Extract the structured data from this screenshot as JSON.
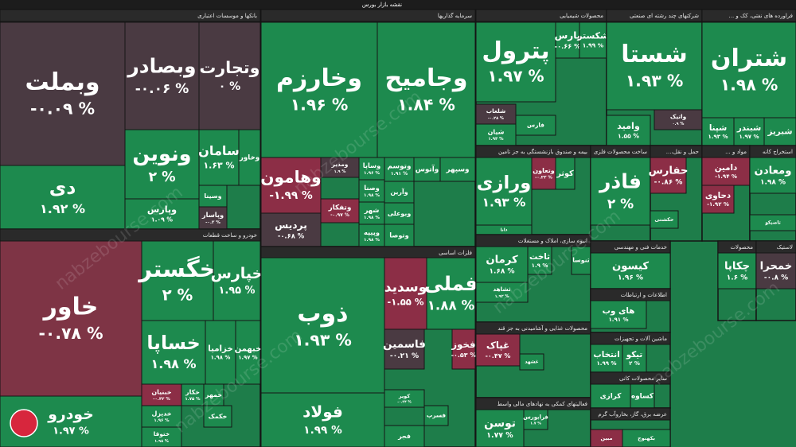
{
  "title": "نقشه بازار بورس",
  "watermark": "nabzebourse.com",
  "sectors": [
    {
      "name": "بانکها و موسسات اعتباری",
      "tiles": [
        {
          "symbol": "وبملت",
          "change": "-۰.۰۹ %",
          "color": "#4a3a42"
        },
        {
          "symbol": "دی",
          "change": "۱.۹۲ %",
          "color": "#1d8a4e"
        },
        {
          "symbol": "وبصادر",
          "change": "-۰.۰۶ %",
          "color": "#4a3a42"
        },
        {
          "symbol": "وتجارت",
          "change": "۰ %",
          "color": "#4a3a42"
        },
        {
          "symbol": "ونوین",
          "change": "۲ %",
          "color": "#1d8a4e"
        },
        {
          "symbol": "وپارس",
          "change": "۱.۰۹ %",
          "color": "#1d8a4e"
        },
        {
          "symbol": "سامان",
          "change": "۱.۶۳ %",
          "color": "#1d8a4e"
        },
        {
          "symbol": "وخاور",
          "color": "#1d8a4e"
        },
        {
          "symbol": "وسینا",
          "color": "#1d8a4e"
        },
        {
          "symbol": "وپاسار",
          "change": "-۰.۲ %",
          "color": "#4a3a42"
        }
      ]
    },
    {
      "name": "خودرو و ساخت قطعات",
      "tiles": [
        {
          "symbol": "خاور",
          "change": "-۰.۷۸ %",
          "color": "#7e3445"
        },
        {
          "symbol": "خودرو",
          "change": "۱.۹۷ %",
          "color": "#1d8a4e"
        },
        {
          "symbol": "خگستر",
          "change": "۲ %",
          "color": "#1d8a4e"
        },
        {
          "symbol": "خپارس",
          "change": "۱.۹۵ %",
          "color": "#1d8a4e"
        },
        {
          "symbol": "خساپا",
          "change": "۱.۹۸ %",
          "color": "#1d8a4e"
        },
        {
          "symbol": "خزامیا",
          "change": "۱.۹۸ %",
          "color": "#1d8a4e"
        },
        {
          "symbol": "خبهمن",
          "change": "۱.۹۷ %",
          "color": "#1d8a4e"
        },
        {
          "symbol": "خبنیان",
          "change": "-۰.۴۲ %",
          "color": "#8c2e46"
        },
        {
          "symbol": "خکار",
          "change": "۱.۷۵ %",
          "color": "#1d8a4e"
        },
        {
          "symbol": "خمهر",
          "color": "#1d8a4e"
        },
        {
          "symbol": "خدیزل",
          "change": "۱.۹۶ %",
          "color": "#1d8a4e"
        },
        {
          "symbol": "ختوقا",
          "change": "۱.۹۸ %",
          "color": "#1d8a4e"
        },
        {
          "symbol": "خکمک",
          "color": "#1d8a4e"
        }
      ]
    },
    {
      "name": "سرمایه گذاریها",
      "tiles": [
        {
          "symbol": "وخارزم",
          "change": "۱.۹۶ %",
          "color": "#1d8a4e"
        },
        {
          "symbol": "وجامیح",
          "change": "۱.۸۴ %",
          "color": "#1d8a4e"
        },
        {
          "symbol": "وهامون",
          "change": "-۱.۹۹ %",
          "color": "#8c2e46"
        },
        {
          "symbol": "ومدیر",
          "change": "۱.۹ %",
          "color": "#4a3a42"
        },
        {
          "symbol": "وتفکار",
          "change": "-۰.۹۷ %",
          "color": "#8c2e46"
        },
        {
          "symbol": "وساپا",
          "change": "۱.۹۶ %",
          "color": "#1d8a4e"
        },
        {
          "symbol": "وتوسم",
          "change": "۱.۹۱ %",
          "color": "#1d8a4e"
        },
        {
          "symbol": "وآتوس",
          "color": "#1d8a4e"
        },
        {
          "symbol": "وسپهر",
          "color": "#1d8a4e"
        },
        {
          "symbol": "پردیس",
          "change": "-۰.۶۸ %",
          "color": "#4a3a42"
        },
        {
          "symbol": "وصنا",
          "change": "۱.۹۸ %",
          "color": "#1d8a4e"
        },
        {
          "symbol": "شهر",
          "change": "۱.۹۸ %",
          "color": "#1d8a4e"
        },
        {
          "symbol": "وپیپه",
          "change": "۱.۹۸ %",
          "color": "#1d8a4e"
        },
        {
          "symbol": "وآرین",
          "color": "#1d8a4e"
        },
        {
          "symbol": "وبوعلی",
          "color": "#1d8a4e"
        },
        {
          "symbol": "وتوصا",
          "color": "#1d8a4e"
        }
      ]
    },
    {
      "name": "فلزات اساسی",
      "tiles": [
        {
          "symbol": "ذوب",
          "change": "۱.۹۳ %",
          "color": "#1d8a4e"
        },
        {
          "symbol": "فولاد",
          "change": "۱.۹۹ %",
          "color": "#1d8a4e"
        },
        {
          "symbol": "وسدید",
          "change": "-۱.۵۵ %",
          "color": "#8c2e46"
        },
        {
          "symbol": "فملی",
          "change": "۱.۸۸ %",
          "color": "#1d8a4e"
        },
        {
          "symbol": "فاسمین",
          "change": "-۰.۲۱ %",
          "color": "#4a3a42"
        },
        {
          "symbol": "فخوز",
          "change": "-۰.۵۳ %",
          "color": "#8c2e46"
        },
        {
          "symbol": "فجر",
          "color": "#1d8a4e"
        },
        {
          "symbol": "فسرب",
          "color": "#1d8a4e"
        },
        {
          "symbol": "کویر",
          "change": "-۰.۲۴ %",
          "color": "#1d8a4e"
        }
      ]
    },
    {
      "name": "محصولات شیمیایی",
      "tiles": [
        {
          "symbol": "پترول",
          "change": "۱.۹۷ %",
          "color": "#1d8a4e"
        },
        {
          "symbol": "پارس",
          "change": "-۰.۶۶ %",
          "color": "#1d8a4e"
        },
        {
          "symbol": "شکستر",
          "change": "۱.۹۹ %",
          "color": "#1d8a4e"
        },
        {
          "symbol": "شلعاب",
          "change": "-۰.۲۸ %",
          "color": "#4a3a42"
        },
        {
          "symbol": "شیان",
          "change": "۱.۹۴ %",
          "color": "#1d8a4e"
        },
        {
          "symbol": "فارس",
          "color": "#1d8a4e"
        }
      ]
    },
    {
      "name": "شرکتهای چند رشته ای صنعتی",
      "tiles": [
        {
          "symbol": "شستا",
          "change": "۱.۹۳ %",
          "color": "#1d8a4e"
        },
        {
          "symbol": "واتیک",
          "change": "۰.۹ %",
          "color": "#4a3a42"
        },
        {
          "symbol": "وامید",
          "change": "۱.۵۵ %",
          "color": "#1d8a4e"
        }
      ]
    },
    {
      "name": "فراورده های نفتی، کک و ...",
      "tiles": [
        {
          "symbol": "شتران",
          "change": "۱.۹۸ %",
          "color": "#1d8a4e"
        },
        {
          "symbol": "شپنا",
          "change": "۱.۹۳ %",
          "color": "#1d8a4e"
        },
        {
          "symbol": "شبندر",
          "change": "۱.۹۷ %",
          "color": "#1d8a4e"
        },
        {
          "symbol": "شبریز",
          "color": "#1d8a4e"
        }
      ]
    },
    {
      "name": "بیمه و صندوق بازنشستگی به جز تامین",
      "tiles": [
        {
          "symbol": "ورازی",
          "change": "۱.۹۳ %",
          "color": "#1d8a4e"
        },
        {
          "symbol": "وتعاون",
          "change": "-۰.۲۳ %",
          "color": "#8c2e46"
        },
        {
          "symbol": "کوثر",
          "color": "#1d8a4e"
        },
        {
          "symbol": "دانا",
          "color": "#1d8a4e"
        }
      ]
    },
    {
      "name": "ساخت محصولات فلزی",
      "tiles": [
        {
          "symbol": "فاذر",
          "change": "۲ %",
          "color": "#1d8a4e"
        }
      ]
    },
    {
      "name": "حمل و نقل،...",
      "tiles": [
        {
          "symbol": "حفارس",
          "change": "-۰.۸۶ %",
          "color": "#8c2e46"
        },
        {
          "symbol": "حکشتی",
          "color": "#1d8a4e"
        }
      ]
    },
    {
      "name": "مواد و ...",
      "tiles": [
        {
          "symbol": "دامین",
          "change": "-۱.۹۴ %",
          "color": "#8c2e46"
        },
        {
          "symbol": "دحاوی",
          "change": "-۱.۹۲ %",
          "color": "#8c2e46"
        }
      ]
    },
    {
      "name": "استخراج کانه",
      "tiles": [
        {
          "symbol": "ومعادن",
          "change": "۱.۹۸ %",
          "color": "#1d8a4e"
        },
        {
          "symbol": "تاصیکو",
          "color": "#1d8a4e"
        }
      ]
    },
    {
      "name": "انبوه سازی، املاک و مستغلات",
      "tiles": [
        {
          "symbol": "کرمان",
          "change": "۱.۶۸ %",
          "color": "#1d8a4e"
        },
        {
          "symbol": "ثاخت",
          "change": "۱.۹ %",
          "color": "#1d8a4e"
        },
        {
          "symbol": "ثنوسا",
          "color": "#1d8a4e"
        },
        {
          "symbol": "ثشاهد",
          "change": "۱.۹۲ %",
          "color": "#1d8a4e"
        }
      ]
    },
    {
      "name": "محصولات غذایی و آشامیدنی به جز قند",
      "tiles": [
        {
          "symbol": "غپاک",
          "change": "-۰.۴۷ %",
          "color": "#8c2e46"
        },
        {
          "symbol": "غشهد",
          "color": "#1d8a4e"
        }
      ]
    },
    {
      "name": "فعالیتهای کمکی به نهادهای مالی واسط",
      "tiles": [
        {
          "symbol": "توسن",
          "change": "۱.۷۷ %",
          "color": "#1d8a4e"
        },
        {
          "symbol": "فرابورس",
          "change": "۱.۷ %",
          "color": "#1d8a4e"
        }
      ]
    },
    {
      "name": "خدمات فنی و مهندسی",
      "tiles": [
        {
          "symbol": "کیسون",
          "change": "۱.۹۶ %",
          "color": "#1d8a4e"
        }
      ]
    },
    {
      "name": "اطلاعات و ارتباطات",
      "tiles": [
        {
          "symbol": "های وب",
          "change": "۱.۹۱ %",
          "color": "#1d8a4e"
        }
      ]
    },
    {
      "name": "ماشین آلات و تجهیزات",
      "tiles": [
        {
          "symbol": "انتخاب",
          "change": "۱.۹۹ %",
          "color": "#1d8a4e"
        },
        {
          "symbol": "تیکو",
          "change": "۲ %",
          "color": "#1d8a4e"
        }
      ]
    },
    {
      "name": "سایر محصولات کانی",
      "tiles": [
        {
          "symbol": "کرازی",
          "color": "#1d8a4e"
        },
        {
          "symbol": "کساوه",
          "color": "#1d8a4e"
        }
      ]
    },
    {
      "name": "عرضه برق، گاز، بخاروآب گرم",
      "tiles": [
        {
          "symbol": "بکهنوج",
          "color": "#1d8a4e"
        },
        {
          "symbol": "مبین",
          "color": "#8c2e46"
        }
      ]
    },
    {
      "name": "محصولات",
      "tiles": [
        {
          "symbol": "چکاپا",
          "change": "۱.۶ %",
          "color": "#1d8a4e"
        }
      ]
    },
    {
      "name": "لاستیک",
      "tiles": [
        {
          "symbol": "خمحرا",
          "change": "-۰.۸ %",
          "color": "#4a3a42"
        }
      ]
    }
  ]
}
